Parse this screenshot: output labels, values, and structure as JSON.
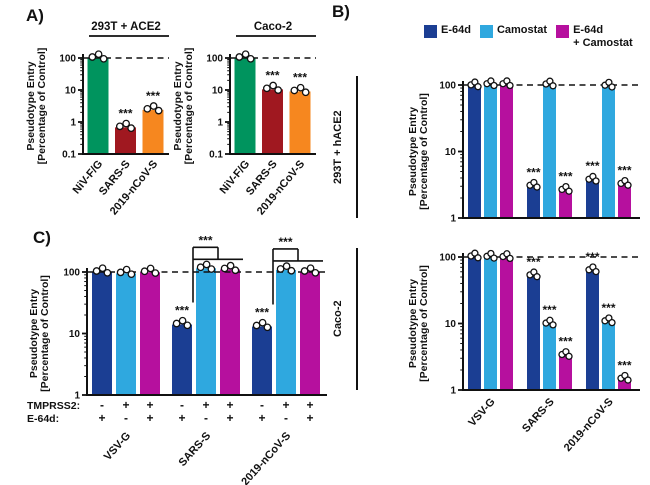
{
  "panels": {
    "a": "A)",
    "b": "B)",
    "c": "C)"
  },
  "legend": {
    "items": [
      {
        "label": "E-64d",
        "color_key": "dark_blue"
      },
      {
        "label": "Camostat",
        "color_key": "light_blue"
      },
      {
        "label_line1": "E-64d",
        "label_line2": "+ Camostat",
        "color_key": "magenta"
      }
    ]
  },
  "panel_b": {
    "row_top_label": "293T + hACE2",
    "row_bottom_label": "Caco-2"
  },
  "colors": {
    "green": "#00945E",
    "dark_red": "#A01820",
    "orange": "#F6871F",
    "dark_blue": "#1B3E93",
    "light_blue": "#2FA8DF",
    "magenta": "#B6109E",
    "axis": "#111111"
  },
  "chart_data": [
    {
      "id": "A1",
      "type": "bar",
      "title": "293T + ACE2",
      "ylabel": [
        "Pseudotype Entry",
        "[Percentage of Control]"
      ],
      "categories": [
        "NiV-F/G",
        "SARS-S",
        "2019-nCoV-S"
      ],
      "values": [
        100,
        0.68,
        2.4
      ],
      "bar_colors": [
        "green",
        "dark_red",
        "orange"
      ],
      "sig": [
        "",
        "***",
        "***"
      ],
      "ylim": [
        0.1,
        100
      ],
      "yticks": [
        "0.1",
        "1",
        "10",
        "100"
      ],
      "dashed_y": 100,
      "show_xlabels": true
    },
    {
      "id": "A2",
      "type": "bar",
      "title": "Caco-2",
      "ylabel": [
        "Pseudotype Entry",
        "[Percentage of Control]"
      ],
      "categories": [
        "NiV-F/G",
        "SARS-S",
        "2019-nCoV-S"
      ],
      "values": [
        100,
        10.5,
        9
      ],
      "bar_colors": [
        "green",
        "dark_red",
        "orange"
      ],
      "sig": [
        "",
        "***",
        "***"
      ],
      "ylim": [
        0.1,
        100
      ],
      "yticks": [
        "0.1",
        "1",
        "10",
        "100"
      ],
      "dashed_y": 100,
      "show_xlabels": true
    },
    {
      "id": "B1",
      "type": "grouped_bar",
      "row_label": "293T + hACE2",
      "ylabel": [
        "Pseudotype Entry",
        "[Percentage of Control]"
      ],
      "categories": [
        "VSV-G",
        "SARS-S",
        "2019-nCoV-S"
      ],
      "series": [
        {
          "name": "E-64d",
          "color": "dark_blue",
          "values": [
            97,
            3.0,
            3.7
          ],
          "sig": [
            "",
            "***",
            "***"
          ]
        },
        {
          "name": "Camostat",
          "color": "light_blue",
          "values": [
            101,
            100,
            96
          ],
          "sig": [
            "",
            "",
            ""
          ]
        },
        {
          "name": "E-64d + Camostat",
          "color": "magenta",
          "values": [
            101,
            2.6,
            3.2
          ],
          "sig": [
            "",
            "***",
            "***"
          ]
        }
      ],
      "ylim": [
        1,
        100
      ],
      "yticks": [
        "1",
        "10",
        "100"
      ],
      "dashed_y": 100,
      "show_xlabels": false
    },
    {
      "id": "B2",
      "type": "grouped_bar",
      "row_label": "Caco-2",
      "ylabel": [
        "Pseudotype Entry",
        "[Percentage of Control]"
      ],
      "categories": [
        "VSV-G",
        "SARS-S",
        "2019-nCoV-S"
      ],
      "series": [
        {
          "name": "E-64d",
          "color": "dark_blue",
          "values": [
            100,
            52,
            62
          ],
          "sig": [
            "",
            "***",
            "***"
          ]
        },
        {
          "name": "Camostat",
          "color": "light_blue",
          "values": [
            99,
            9.8,
            10.6
          ],
          "sig": [
            "",
            "***",
            "***"
          ]
        },
        {
          "name": "E-64d + Camostat",
          "color": "magenta",
          "values": [
            98,
            3.3,
            1.45
          ],
          "sig": [
            "",
            "***",
            "***"
          ]
        }
      ],
      "ylim": [
        1,
        100
      ],
      "yticks": [
        "1",
        "10",
        "100"
      ],
      "dashed_y": 100,
      "show_xlabels": true
    },
    {
      "id": "C",
      "type": "grouped_bar",
      "ylabel": [
        "Pseudotype Entry",
        "[Percentage of Control]"
      ],
      "categories": [
        "VSV-G",
        "SARS-S",
        "2019-nCoV-S"
      ],
      "series": [
        {
          "name": "TMPRSS2- / E-64d+",
          "color": "dark_blue",
          "values": [
            100,
            14,
            13
          ],
          "sig": [
            "",
            "***",
            "***"
          ]
        },
        {
          "name": "TMPRSS2+ / E-64d-",
          "color": "light_blue",
          "values": [
            95,
            115,
            108
          ],
          "sig": [
            "",
            "",
            ""
          ]
        },
        {
          "name": "TMPRSS2+ / E-64d+",
          "color": "magenta",
          "values": [
            99,
            110,
            100
          ],
          "sig": [
            "",
            "",
            ""
          ]
        }
      ],
      "annotation_rows": [
        {
          "label": "TMPRSS2:",
          "values": [
            "-",
            "+",
            "+",
            "-",
            "+",
            "+",
            "-",
            "+",
            "+"
          ]
        },
        {
          "label": "E-64d:",
          "values": [
            "+",
            "-",
            "+",
            "+",
            "-",
            "+",
            "+",
            "-",
            "+"
          ]
        }
      ],
      "brackets": [
        {
          "group": 1,
          "from": 0,
          "to": [
            1,
            2
          ],
          "label": "***"
        },
        {
          "group": 2,
          "from": 0,
          "to": [
            1,
            2
          ],
          "label": "***"
        }
      ],
      "ylim": [
        1,
        100
      ],
      "yticks": [
        "1",
        "10",
        "100"
      ],
      "dashed_y": 100,
      "show_xlabels": true
    }
  ]
}
